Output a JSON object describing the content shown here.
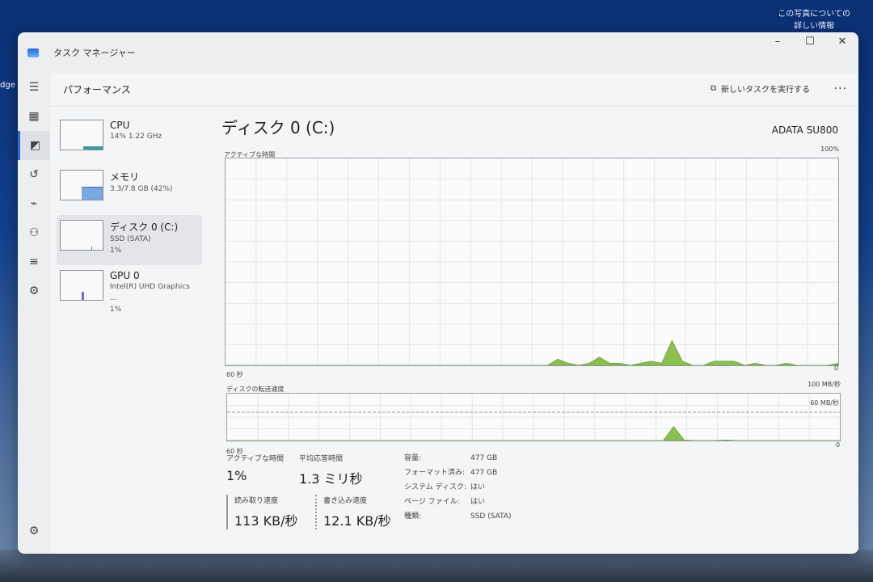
{
  "desktop": {
    "photo_info": [
      "この写真についての",
      "詳しい情報"
    ],
    "edge_label": "dge"
  },
  "window": {
    "title": "タスク マネージャー",
    "minimize": "–",
    "maximize": "☐",
    "close": "✕"
  },
  "header": {
    "title": "パフォーマンス",
    "new_task": "新しいタスクを実行する",
    "more": "..."
  },
  "sidebar": [
    {
      "name": "CPU",
      "sub1": "14%  1.22 GHz",
      "sub2": ""
    },
    {
      "name": "メモリ",
      "sub1": "3.3/7.8 GB (42%)",
      "sub2": ""
    },
    {
      "name": "ディスク 0 (C:)",
      "sub1": "SSD (SATA)",
      "sub2": "1%"
    },
    {
      "name": "GPU 0",
      "sub1": "Intel(R) UHD Graphics ...",
      "sub2": "1%"
    }
  ],
  "main": {
    "title": "ディスク 0 (C:)",
    "model": "ADATA SU800",
    "active_label": "アクティブな時間",
    "active_max": "100%",
    "active_xlabel": "60 秒",
    "active_min": "0",
    "transfer_label": "ディスクの転送速度",
    "transfer_max": "100 MB/秒",
    "transfer_mid": "60 MB/秒",
    "transfer_xlabel": "60 秒",
    "transfer_min": "0",
    "stats": {
      "active_time_label": "アクティブな時間",
      "active_time": "1%",
      "resp_label": "平均応答時間",
      "resp": "1.3 ミリ秒",
      "read_label": "読み取り速度",
      "read": "113 KB/秒",
      "write_label": "書き込み速度",
      "write": "12.1 KB/秒"
    },
    "props": [
      [
        "容量:",
        "477 GB"
      ],
      [
        "フォーマット済み:",
        "477 GB"
      ],
      [
        "システム ディスク:",
        "はい"
      ],
      [
        "ページ ファイル:",
        "はい"
      ],
      [
        "種類:",
        "SSD (SATA)"
      ]
    ]
  },
  "chart_data": {
    "type": "area",
    "color": "#8cc152",
    "active_time_percent": [
      0,
      0,
      0,
      0,
      0,
      0,
      0,
      0,
      0,
      0,
      0,
      0,
      0,
      0,
      0,
      0,
      0,
      0,
      0,
      0,
      0,
      0,
      0,
      0,
      0,
      0,
      0,
      0,
      0,
      0,
      0,
      0,
      3,
      1,
      0,
      1,
      4,
      1,
      1,
      0,
      1,
      2,
      1,
      12,
      2,
      0,
      0,
      2,
      2,
      2,
      0,
      1,
      0,
      0,
      1,
      0,
      0,
      0,
      0,
      1
    ],
    "transfer_mb_s": [
      0,
      0,
      0,
      0,
      0,
      0,
      0,
      0,
      0,
      0,
      0,
      0,
      0,
      0,
      0,
      0,
      0,
      0,
      0,
      0,
      0,
      0,
      0,
      0,
      0,
      0,
      0,
      0,
      0,
      0,
      0,
      0,
      0,
      0,
      0,
      0,
      0,
      0,
      0,
      0,
      0,
      0,
      0,
      30,
      1,
      0,
      0,
      0,
      1,
      0,
      0,
      0,
      0,
      0,
      0,
      0,
      0,
      0,
      0,
      0
    ]
  }
}
